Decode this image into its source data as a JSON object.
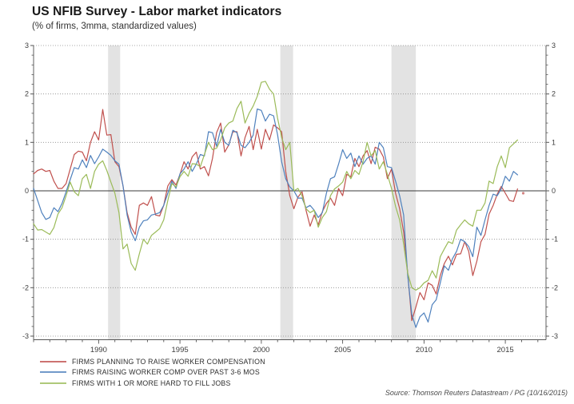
{
  "header": {
    "title": "US NFIB Survey - Labor market indicators",
    "subtitle": "(% of firms, 3mma, standardized values)"
  },
  "source": "Source: Thomson Reuters Datastream / PG (10/16/2015)",
  "legend": [
    {
      "label": "FIRMS PLANNING TO RAISE WORKER COMPENSATION",
      "color": "#c0504d"
    },
    {
      "label": "FIRMS RAISING WORKER COMP OVER PAST 3-6 MOS",
      "color": "#4f81bd"
    },
    {
      "label": "FIRMS WITH 1 OR MORE HARD TO FILL JOBS",
      "color": "#9bbb59"
    }
  ],
  "chart_data": {
    "type": "line",
    "x_range": [
      1986,
      2017.5
    ],
    "ylim": [
      -3,
      3
    ],
    "y_ticks": [
      3,
      2,
      1,
      0,
      -1,
      -2,
      -3
    ],
    "x_ticks": [
      1990,
      1995,
      2000,
      2005,
      2010,
      2015
    ],
    "grid": "dotted horizontal lines at integers, solid zero line, dual y-axes",
    "band_color": "#e3e3e3",
    "recession_bands": [
      [
        1990.58,
        1991.32
      ],
      [
        2001.17,
        2001.95
      ],
      [
        2008.0,
        2009.5
      ]
    ],
    "x_start": 1986.0,
    "x_step": 0.25,
    "end_dot": {
      "x": 2016.1,
      "value": -0.05
    },
    "series": [
      {
        "name": "FIRMS PLANNING TO RAISE WORKER COMPENSATION",
        "color": "#c0504d",
        "values": [
          0.35,
          0.42,
          0.45,
          0.4,
          0.42,
          0.2,
          0.05,
          0.05,
          0.15,
          0.45,
          0.75,
          0.82,
          0.8,
          0.62,
          1.0,
          1.22,
          1.05,
          1.68,
          1.15,
          1.16,
          0.6,
          0.5,
          0.1,
          -0.45,
          -0.75,
          -0.9,
          -0.3,
          -0.25,
          -0.3,
          -0.12,
          -0.5,
          -0.52,
          -0.3,
          0.1,
          0.23,
          0.12,
          0.34,
          0.6,
          0.45,
          0.7,
          0.8,
          0.45,
          0.5,
          0.31,
          0.67,
          1.2,
          1.4,
          0.8,
          0.95,
          1.22,
          1.22,
          0.72,
          1.1,
          1.33,
          0.85,
          1.27,
          0.86,
          1.27,
          1.05,
          1.36,
          1.3,
          1.22,
          0.4,
          -0.1,
          -0.37,
          -0.13,
          -0.02,
          -0.4,
          -0.73,
          -0.5,
          -0.7,
          -0.43,
          -0.26,
          -0.15,
          -0.3,
          0.05,
          -0.1,
          0.34,
          0.29,
          0.67,
          0.5,
          0.72,
          0.83,
          0.56,
          0.9,
          0.86,
          0.7,
          0.25,
          0.45,
          -0.05,
          -0.37,
          -0.85,
          -1.7,
          -2.68,
          -2.4,
          -2.1,
          -2.25,
          -1.9,
          -1.95,
          -2.13,
          -1.75,
          -1.5,
          -1.35,
          -1.53,
          -1.31,
          -1.3,
          -1.05,
          -1.25,
          -1.75,
          -1.45,
          -1.05,
          -0.9,
          -0.48,
          -0.3,
          -0.07,
          0.09,
          -0.05,
          -0.2,
          -0.22,
          0.04
        ]
      },
      {
        "name": "FIRMS RAISING WORKER COMP OVER PAST 3-6 MOS",
        "color": "#4f81bd",
        "values": [
          0.05,
          -0.2,
          -0.45,
          -0.59,
          -0.55,
          -0.35,
          -0.43,
          -0.26,
          -0.02,
          0.23,
          0.48,
          0.45,
          0.64,
          0.48,
          0.73,
          0.56,
          0.7,
          0.86,
          0.8,
          0.73,
          0.62,
          0.55,
          0.1,
          -0.5,
          -0.85,
          -1.03,
          -0.75,
          -0.62,
          -0.6,
          -0.5,
          -0.48,
          -0.45,
          -0.3,
          -0.05,
          0.2,
          0.05,
          0.35,
          0.45,
          0.6,
          0.4,
          0.55,
          0.75,
          0.72,
          1.22,
          1.2,
          0.92,
          1.27,
          1.0,
          0.94,
          1.25,
          1.2,
          0.94,
          0.89,
          1.0,
          1.15,
          1.69,
          1.66,
          1.44,
          1.58,
          1.55,
          1.16,
          0.6,
          0.25,
          0.08,
          0.0,
          -0.15,
          -0.15,
          -0.35,
          -0.3,
          -0.4,
          -0.55,
          -0.45,
          -0.05,
          0.25,
          0.29,
          0.55,
          0.85,
          0.67,
          0.78,
          0.5,
          0.72,
          0.55,
          0.67,
          0.72,
          0.55,
          1.0,
          0.89,
          0.5,
          0.48,
          0.2,
          -0.1,
          -0.5,
          -1.75,
          -2.55,
          -2.82,
          -2.6,
          -2.52,
          -2.71,
          -2.35,
          -2.25,
          -1.9,
          -1.55,
          -1.64,
          -1.4,
          -1.25,
          -1.0,
          -1.05,
          -1.15,
          -1.36,
          -0.75,
          -0.92,
          -0.6,
          -0.3,
          -0.07,
          -0.1,
          0.04,
          0.3,
          0.2,
          0.4,
          0.33
        ]
      },
      {
        "name": "FIRMS WITH 1 OR MORE HARD TO FILL JOBS",
        "color": "#9bbb59",
        "values": [
          -0.68,
          -0.81,
          -0.8,
          -0.85,
          -0.9,
          -0.76,
          -0.48,
          -0.35,
          -0.1,
          0.18,
          -0.02,
          -0.1,
          0.25,
          0.34,
          0.05,
          0.4,
          0.55,
          0.62,
          0.42,
          0.18,
          -0.05,
          -0.45,
          -1.2,
          -1.1,
          -1.5,
          -1.64,
          -1.3,
          -1.0,
          -1.1,
          -0.92,
          -0.85,
          -0.78,
          -0.6,
          -0.2,
          0.15,
          0.08,
          0.29,
          0.4,
          0.3,
          0.56,
          0.55,
          0.5,
          0.75,
          1.0,
          0.85,
          0.88,
          1.05,
          1.3,
          1.4,
          1.44,
          1.7,
          1.85,
          1.4,
          1.6,
          1.75,
          1.95,
          2.24,
          2.26,
          2.1,
          2.0,
          1.5,
          1.1,
          0.85,
          1.0,
          0.0,
          0.05,
          -0.1,
          -0.37,
          -0.45,
          -0.4,
          -0.75,
          -0.55,
          -0.43,
          -0.1,
          0.04,
          0.1,
          0.18,
          0.4,
          0.25,
          0.42,
          0.34,
          0.6,
          1.0,
          0.72,
          0.83,
          0.45,
          0.6,
          0.34,
          0.05,
          -0.32,
          -0.6,
          -1.1,
          -1.7,
          -2.0,
          -2.05,
          -2.0,
          -1.9,
          -1.85,
          -1.65,
          -1.8,
          -1.36,
          -1.2,
          -1.05,
          -1.09,
          -0.81,
          -0.7,
          -0.6,
          -0.68,
          -0.73,
          -0.4,
          -0.4,
          -0.25,
          0.2,
          0.15,
          0.5,
          0.72,
          0.48,
          0.89,
          0.97,
          1.05
        ]
      }
    ]
  }
}
